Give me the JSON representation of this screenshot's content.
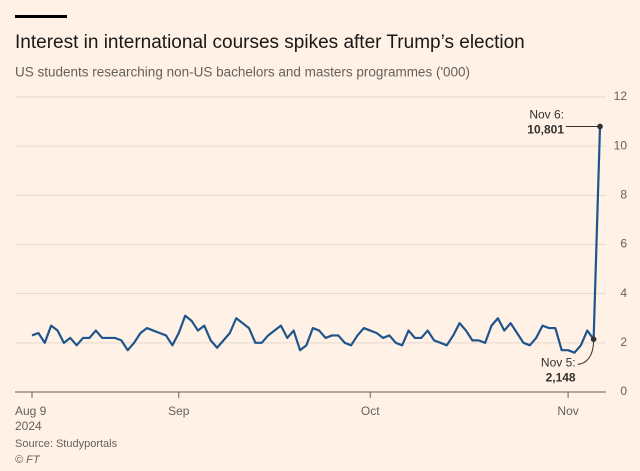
{
  "chart_data": {
    "type": "line",
    "title": "Interest in international courses spikes after Trump’s election",
    "subtitle": "US students researching non-US bachelors and masters programmes ('000)",
    "source": "Source: Studyportals",
    "credit": "© FT",
    "x": [
      "2024-08-09",
      "2024-08-10",
      "2024-08-11",
      "2024-08-12",
      "2024-08-13",
      "2024-08-14",
      "2024-08-15",
      "2024-08-16",
      "2024-08-17",
      "2024-08-18",
      "2024-08-19",
      "2024-08-20",
      "2024-08-21",
      "2024-08-22",
      "2024-08-23",
      "2024-08-24",
      "2024-08-25",
      "2024-08-26",
      "2024-08-27",
      "2024-08-28",
      "2024-08-29",
      "2024-08-30",
      "2024-08-31",
      "2024-09-01",
      "2024-09-02",
      "2024-09-03",
      "2024-09-04",
      "2024-09-05",
      "2024-09-06",
      "2024-09-07",
      "2024-09-08",
      "2024-09-09",
      "2024-09-10",
      "2024-09-11",
      "2024-09-12",
      "2024-09-13",
      "2024-09-14",
      "2024-09-15",
      "2024-09-16",
      "2024-09-17",
      "2024-09-18",
      "2024-09-19",
      "2024-09-20",
      "2024-09-21",
      "2024-09-22",
      "2024-09-23",
      "2024-09-24",
      "2024-09-25",
      "2024-09-26",
      "2024-09-27",
      "2024-09-28",
      "2024-09-29",
      "2024-09-30",
      "2024-10-01",
      "2024-10-02",
      "2024-10-03",
      "2024-10-04",
      "2024-10-05",
      "2024-10-06",
      "2024-10-07",
      "2024-10-08",
      "2024-10-09",
      "2024-10-10",
      "2024-10-11",
      "2024-10-12",
      "2024-10-13",
      "2024-10-14",
      "2024-10-15",
      "2024-10-16",
      "2024-10-17",
      "2024-10-18",
      "2024-10-19",
      "2024-10-20",
      "2024-10-21",
      "2024-10-22",
      "2024-10-23",
      "2024-10-24",
      "2024-10-25",
      "2024-10-26",
      "2024-10-27",
      "2024-10-28",
      "2024-10-29",
      "2024-10-30",
      "2024-10-31",
      "2024-11-01",
      "2024-11-02",
      "2024-11-03",
      "2024-11-04",
      "2024-11-05",
      "2024-11-06"
    ],
    "series": [
      {
        "name": "US students",
        "color": "#1e558c",
        "values": [
          2.3,
          2.4,
          2.0,
          2.7,
          2.5,
          2.0,
          2.2,
          1.9,
          2.2,
          2.2,
          2.5,
          2.2,
          2.2,
          2.2,
          2.1,
          1.7,
          2.0,
          2.4,
          2.6,
          2.5,
          2.4,
          2.3,
          1.9,
          2.4,
          3.1,
          2.9,
          2.5,
          2.7,
          2.1,
          1.8,
          2.1,
          2.4,
          3.0,
          2.8,
          2.6,
          2.0,
          2.0,
          2.3,
          2.5,
          2.7,
          2.2,
          2.5,
          1.7,
          1.9,
          2.6,
          2.5,
          2.2,
          2.3,
          2.3,
          2.0,
          1.9,
          2.3,
          2.6,
          2.5,
          2.4,
          2.2,
          2.3,
          2.0,
          1.9,
          2.5,
          2.2,
          2.2,
          2.5,
          2.1,
          2.0,
          1.9,
          2.3,
          2.8,
          2.5,
          2.1,
          2.1,
          2.0,
          2.7,
          3.0,
          2.5,
          2.8,
          2.4,
          2.0,
          1.9,
          2.2,
          2.7,
          2.6,
          2.6,
          1.7,
          1.7,
          1.6,
          1.9,
          2.5,
          2.148,
          10.801
        ],
        "value_labels": [
          null,
          null,
          null,
          null,
          null,
          null,
          null,
          null,
          null,
          null,
          null,
          null,
          null,
          null,
          null,
          null,
          null,
          null,
          null,
          null,
          null,
          null,
          null,
          null,
          null,
          null,
          null,
          null,
          null,
          null,
          null,
          null,
          null,
          null,
          null,
          null,
          null,
          null,
          null,
          null,
          null,
          null,
          null,
          null,
          null,
          null,
          null,
          null,
          null,
          null,
          null,
          null,
          null,
          null,
          null,
          null,
          null,
          null,
          null,
          null,
          null,
          null,
          null,
          null,
          null,
          null,
          null,
          null,
          null,
          null,
          null,
          null,
          null,
          null,
          null,
          null,
          null,
          null,
          null,
          null,
          null,
          null,
          null,
          null,
          null,
          null,
          null,
          null,
          "2,148",
          "10,801"
        ]
      }
    ],
    "annotations": [
      {
        "x": "2024-11-05",
        "text": "Nov 5:"
      },
      {
        "x": "2024-11-06",
        "text": "Nov 6:"
      }
    ],
    "xlim": [
      "2024-08-09",
      "2024-11-06"
    ],
    "xticks": [
      {
        "value": "2024-08-09",
        "label": "Aug 9"
      },
      {
        "value": "2024-09-01",
        "label": "Sep"
      },
      {
        "value": "2024-10-01",
        "label": "Oct"
      },
      {
        "value": "2024-11-01",
        "label": "Nov"
      }
    ],
    "xtick_year": "2024",
    "ylim": [
      0,
      12
    ],
    "yticks": [
      0,
      2,
      4,
      6,
      8,
      10,
      12
    ],
    "grid": true
  }
}
